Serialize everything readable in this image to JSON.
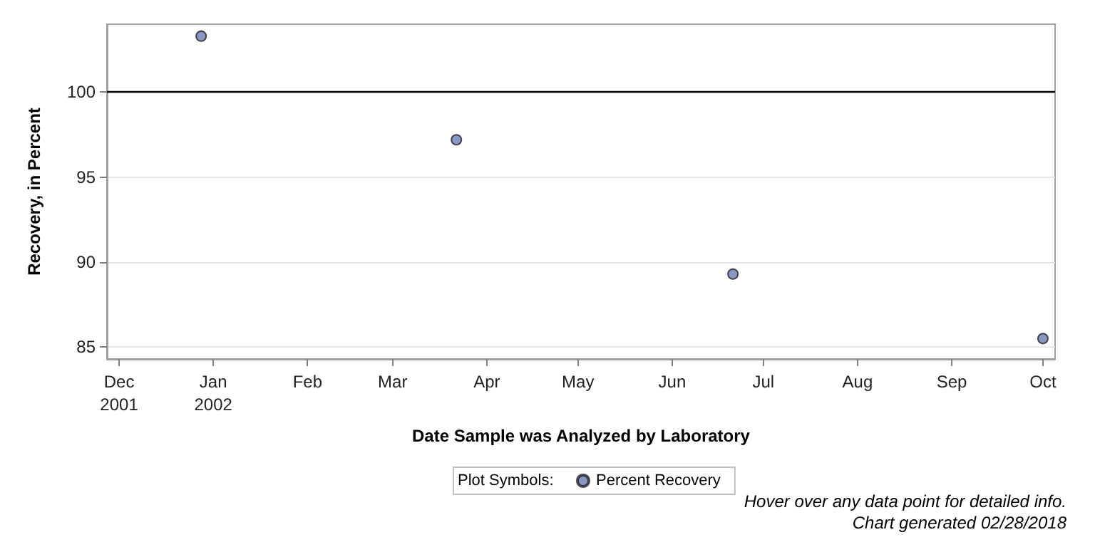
{
  "chart_data": {
    "type": "scatter",
    "xlabel": "Date Sample was Analyzed by Laboratory",
    "ylabel": "Recovery, in Percent",
    "legend_title": "Plot Symbols:",
    "x": [
      "2001-12-28",
      "2002-03-22",
      "2002-06-21",
      "2002-10-01"
    ],
    "series": [
      {
        "name": "Percent Recovery",
        "color": "#6a7db4",
        "values": [
          103.3,
          97.2,
          89.3,
          85.5
        ]
      }
    ],
    "xlim": [
      "2001-11-27",
      "2002-10-05"
    ],
    "xticks": [
      {
        "value": "2001-12-01",
        "label": "Dec\n2001"
      },
      {
        "value": "2002-01-01",
        "label": "Jan\n2002"
      },
      {
        "value": "2002-02-01",
        "label": "Feb"
      },
      {
        "value": "2002-03-01",
        "label": "Mar"
      },
      {
        "value": "2002-04-01",
        "label": "Apr"
      },
      {
        "value": "2002-05-01",
        "label": "May"
      },
      {
        "value": "2002-06-01",
        "label": "Jun"
      },
      {
        "value": "2002-07-01",
        "label": "Jul"
      },
      {
        "value": "2002-08-01",
        "label": "Aug"
      },
      {
        "value": "2002-09-01",
        "label": "Sep"
      },
      {
        "value": "2002-10-01",
        "label": "Oct"
      }
    ],
    "ylim": [
      84.3,
      104
    ],
    "yticks": [
      85,
      90,
      95,
      100
    ],
    "ref_lines": [
      {
        "axis": "y",
        "value": 100,
        "color": "#000000"
      }
    ],
    "grid": "y",
    "legend": "bottom",
    "marker": "circle",
    "annotations": [
      "Hover over any data point for detailed info.",
      "Chart generated 02/28/2018"
    ]
  }
}
